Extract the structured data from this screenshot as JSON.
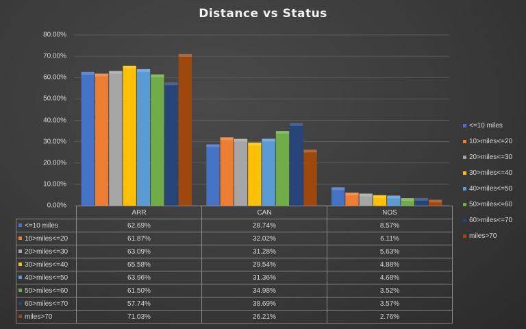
{
  "chart_data": {
    "type": "bar",
    "title": "Distance  vs Status",
    "categories": [
      "ARR",
      "CAN",
      "NOS"
    ],
    "ylim": [
      0,
      80
    ],
    "yticks": [
      "0.00%",
      "10.00%",
      "20.00%",
      "30.00%",
      "40.00%",
      "50.00%",
      "60.00%",
      "70.00%",
      "80.00%"
    ],
    "grid": true,
    "legend_position": "right",
    "data_table": true,
    "series": [
      {
        "name": "<=10 miles",
        "color": "#4472c4",
        "values": [
          62.69,
          28.74,
          8.57
        ],
        "labels": [
          "62.69%",
          "28.74%",
          "8.57%"
        ]
      },
      {
        "name": "10>miles<=20",
        "color": "#ed7d31",
        "values": [
          61.87,
          32.02,
          6.11
        ],
        "labels": [
          "61.87%",
          "32.02%",
          "6.11%"
        ]
      },
      {
        "name": "20>miles<=30",
        "color": "#a5a5a5",
        "values": [
          63.09,
          31.28,
          5.63
        ],
        "labels": [
          "63.09%",
          "31.28%",
          "5.63%"
        ]
      },
      {
        "name": "30>miles<=40",
        "color": "#ffc000",
        "values": [
          65.58,
          29.54,
          4.88
        ],
        "labels": [
          "65.58%",
          "29.54%",
          "4.88%"
        ]
      },
      {
        "name": "40>miles<=50",
        "color": "#5b9bd5",
        "values": [
          63.96,
          31.36,
          4.68
        ],
        "labels": [
          "63.96%",
          "31.36%",
          "4.68%"
        ]
      },
      {
        "name": "50>miles<=60",
        "color": "#70ad47",
        "values": [
          61.5,
          34.98,
          3.52
        ],
        "labels": [
          "61.50%",
          "34.98%",
          "3.52%"
        ]
      },
      {
        "name": "60>miles<=70",
        "color": "#264478",
        "values": [
          57.74,
          38.69,
          3.57
        ],
        "labels": [
          "57.74%",
          "38.69%",
          "3.57%"
        ]
      },
      {
        "name": "miles>70",
        "color": "#9e480e",
        "values": [
          71.03,
          26.21,
          2.76
        ],
        "labels": [
          "71.03%",
          "26.21%",
          "2.76%"
        ]
      }
    ]
  }
}
